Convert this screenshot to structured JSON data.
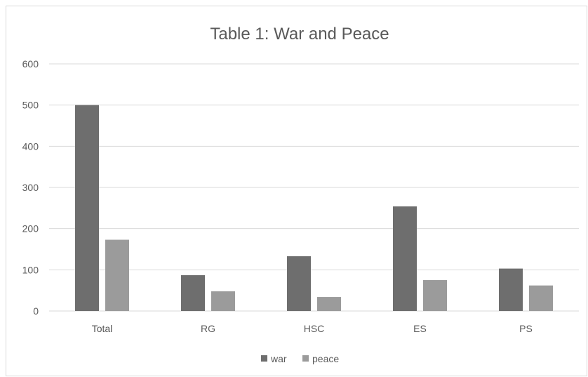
{
  "chart_data": {
    "type": "bar",
    "title": "Table 1: War and Peace",
    "categories": [
      "Total",
      "RG",
      "HSC",
      "ES",
      "PS"
    ],
    "series": [
      {
        "name": "war",
        "color": "#6e6e6e",
        "values": [
          500,
          87,
          133,
          254,
          103
        ]
      },
      {
        "name": "peace",
        "color": "#9b9b9b",
        "values": [
          173,
          48,
          34,
          75,
          62
        ]
      }
    ],
    "y_ticks": [
      "0",
      "100",
      "200",
      "300",
      "400",
      "500",
      "600"
    ],
    "ylim": [
      0,
      600
    ],
    "grid": true,
    "legend_position": "bottom"
  }
}
